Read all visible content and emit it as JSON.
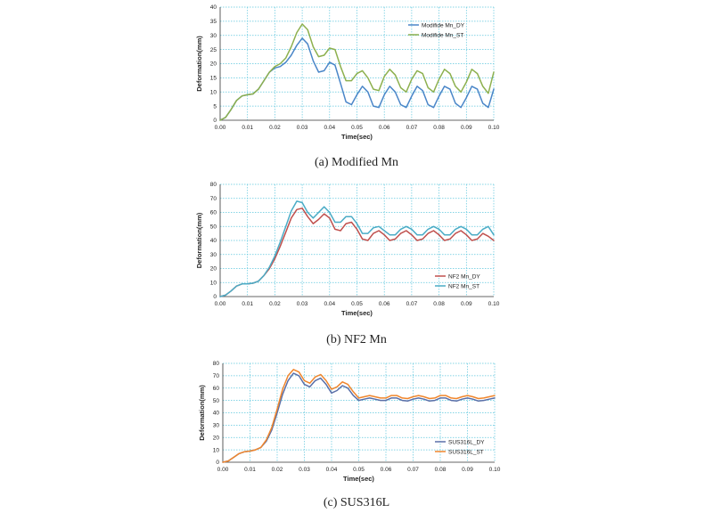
{
  "chart_data": [
    {
      "caption": "(a)  Modified  Mn",
      "type": "line",
      "xlabel": "Time(sec)",
      "ylabel": "Deformation(mm)",
      "xlim": [
        0,
        0.1
      ],
      "ylim": [
        0,
        40
      ],
      "xticks": [
        "0.00",
        "0.01",
        "0.02",
        "0.03",
        "0.04",
        "0.05",
        "0.06",
        "0.07",
        "0.08",
        "0.09",
        "0.10"
      ],
      "yticks": [
        "0",
        "5",
        "10",
        "15",
        "20",
        "25",
        "30",
        "35",
        "40"
      ],
      "grid": true,
      "legend_position": "top-right",
      "series": [
        {
          "name": "Modifide Mn_DY",
          "color": "#4a86c8",
          "x": [
            0,
            0.002,
            0.004,
            0.006,
            0.008,
            0.01,
            0.012,
            0.014,
            0.016,
            0.018,
            0.02,
            0.022,
            0.024,
            0.026,
            0.028,
            0.03,
            0.032,
            0.034,
            0.036,
            0.038,
            0.04,
            0.042,
            0.044,
            0.046,
            0.048,
            0.05,
            0.052,
            0.054,
            0.056,
            0.058,
            0.06,
            0.062,
            0.064,
            0.066,
            0.068,
            0.07,
            0.072,
            0.074,
            0.076,
            0.078,
            0.08,
            0.082,
            0.084,
            0.086,
            0.088,
            0.09,
            0.092,
            0.094,
            0.096,
            0.098,
            0.1
          ],
          "y": [
            0,
            1,
            3.8,
            7,
            8.6,
            9,
            9.3,
            11,
            14,
            17,
            18.5,
            19,
            20.5,
            23,
            26.5,
            29,
            27,
            21,
            17,
            17.5,
            20.5,
            19.5,
            13,
            6.5,
            5.5,
            9,
            12,
            10,
            5,
            4.5,
            9,
            12,
            10,
            5.5,
            4.5,
            8.5,
            12,
            10.5,
            5.5,
            4.5,
            8.5,
            12,
            11,
            6,
            4.5,
            8,
            12,
            11,
            6,
            4.5,
            11
          ]
        },
        {
          "name": "Modifide Mn_ST",
          "color": "#8db04e",
          "x": [
            0,
            0.002,
            0.004,
            0.006,
            0.008,
            0.01,
            0.012,
            0.014,
            0.016,
            0.018,
            0.02,
            0.022,
            0.024,
            0.026,
            0.028,
            0.03,
            0.032,
            0.034,
            0.036,
            0.038,
            0.04,
            0.042,
            0.044,
            0.046,
            0.048,
            0.05,
            0.052,
            0.054,
            0.056,
            0.058,
            0.06,
            0.062,
            0.064,
            0.066,
            0.068,
            0.07,
            0.072,
            0.074,
            0.076,
            0.078,
            0.08,
            0.082,
            0.084,
            0.086,
            0.088,
            0.09,
            0.092,
            0.094,
            0.096,
            0.098,
            0.1
          ],
          "y": [
            0,
            1,
            3.8,
            7,
            8.6,
            9,
            9.3,
            11,
            14,
            17,
            19,
            20,
            22,
            26,
            31,
            34,
            32,
            26,
            22.5,
            23,
            25.5,
            25,
            19,
            14,
            14,
            16.5,
            17.5,
            15,
            11,
            10.5,
            15.5,
            18,
            16,
            11.5,
            10,
            14.5,
            17.5,
            16.5,
            11.5,
            10,
            14.5,
            18,
            16.5,
            12,
            10,
            13.5,
            18,
            16.5,
            12,
            9.5,
            17
          ]
        }
      ]
    },
    {
      "caption": "(b)  NF2  Mn",
      "type": "line",
      "xlabel": "Time(sec)",
      "ylabel": "Deformation(mm)",
      "xlim": [
        0,
        0.1
      ],
      "ylim": [
        0,
        80
      ],
      "xticks": [
        "0.00",
        "0.01",
        "0.02",
        "0.03",
        "0.04",
        "0.05",
        "0.06",
        "0.07",
        "0.08",
        "0.09",
        "0.10"
      ],
      "yticks": [
        "0",
        "10",
        "20",
        "30",
        "40",
        "50",
        "60",
        "70",
        "80"
      ],
      "grid": true,
      "legend_position": "bottom-right",
      "series": [
        {
          "name": "NF2 Mn_DY",
          "color": "#c0504d",
          "x": [
            0,
            0.002,
            0.004,
            0.006,
            0.008,
            0.01,
            0.012,
            0.014,
            0.016,
            0.018,
            0.02,
            0.022,
            0.024,
            0.026,
            0.028,
            0.03,
            0.032,
            0.034,
            0.036,
            0.038,
            0.04,
            0.042,
            0.044,
            0.046,
            0.048,
            0.05,
            0.052,
            0.054,
            0.056,
            0.058,
            0.06,
            0.062,
            0.064,
            0.066,
            0.068,
            0.07,
            0.072,
            0.074,
            0.076,
            0.078,
            0.08,
            0.082,
            0.084,
            0.086,
            0.088,
            0.09,
            0.092,
            0.094,
            0.096,
            0.098,
            0.1
          ],
          "y": [
            0,
            1,
            4,
            7.5,
            9,
            9,
            9.5,
            11,
            15,
            20,
            27,
            36,
            46,
            56,
            62,
            63,
            57,
            52,
            55,
            59,
            56,
            48,
            47,
            52,
            53,
            48,
            41,
            40,
            45,
            47,
            44,
            40,
            41,
            45,
            47,
            44,
            40,
            41,
            45,
            47,
            44,
            40,
            41,
            45,
            47,
            44,
            40,
            41,
            45,
            43,
            40
          ]
        },
        {
          "name": "NF2 Mn_ST",
          "color": "#4bacc6",
          "x": [
            0,
            0.002,
            0.004,
            0.006,
            0.008,
            0.01,
            0.012,
            0.014,
            0.016,
            0.018,
            0.02,
            0.022,
            0.024,
            0.026,
            0.028,
            0.03,
            0.032,
            0.034,
            0.036,
            0.038,
            0.04,
            0.042,
            0.044,
            0.046,
            0.048,
            0.05,
            0.052,
            0.054,
            0.056,
            0.058,
            0.06,
            0.062,
            0.064,
            0.066,
            0.068,
            0.07,
            0.072,
            0.074,
            0.076,
            0.078,
            0.08,
            0.082,
            0.084,
            0.086,
            0.088,
            0.09,
            0.092,
            0.094,
            0.096,
            0.098,
            0.1
          ],
          "y": [
            0,
            1,
            4,
            7.5,
            9,
            9,
            9.5,
            11,
            15,
            21,
            29,
            39,
            50,
            61,
            68,
            67,
            60,
            56,
            60,
            64,
            60,
            53,
            53,
            57,
            57,
            52,
            45,
            45,
            49,
            50,
            47,
            44,
            44,
            48,
            50,
            48,
            44,
            44,
            48,
            50,
            48,
            44,
            44,
            48,
            50,
            48,
            44,
            44,
            48,
            50,
            44
          ]
        }
      ]
    },
    {
      "caption": "(c)  SUS316L",
      "type": "line",
      "xlabel": "Time(sec)",
      "ylabel": "Deformation(mm)",
      "xlim": [
        0,
        0.1
      ],
      "ylim": [
        0,
        80
      ],
      "xticks": [
        "0.00",
        "0.01",
        "0.02",
        "0.03",
        "0.04",
        "0.05",
        "0.06",
        "0.07",
        "0.08",
        "0.09",
        "0.10"
      ],
      "yticks": [
        "0",
        "10",
        "20",
        "30",
        "40",
        "50",
        "60",
        "70",
        "80"
      ],
      "grid": true,
      "legend_position": "bottom-right",
      "series": [
        {
          "name": "SUS316L_DY",
          "color": "#5a6fa8",
          "x": [
            0,
            0.002,
            0.004,
            0.006,
            0.008,
            0.01,
            0.012,
            0.014,
            0.016,
            0.018,
            0.02,
            0.022,
            0.024,
            0.026,
            0.028,
            0.03,
            0.032,
            0.034,
            0.036,
            0.038,
            0.04,
            0.042,
            0.044,
            0.046,
            0.048,
            0.05,
            0.052,
            0.054,
            0.056,
            0.058,
            0.06,
            0.062,
            0.064,
            0.066,
            0.068,
            0.07,
            0.072,
            0.074,
            0.076,
            0.078,
            0.08,
            0.082,
            0.084,
            0.086,
            0.088,
            0.09,
            0.092,
            0.094,
            0.096,
            0.098,
            0.1
          ],
          "y": [
            0,
            1,
            4,
            7,
            8.5,
            9,
            10,
            12,
            17,
            26,
            40,
            55,
            66,
            72,
            70,
            63,
            61,
            66,
            68,
            63,
            56,
            58,
            62,
            60,
            54,
            50,
            51,
            52,
            51,
            50,
            50,
            52,
            52,
            50,
            49.5,
            51,
            52,
            51,
            49.5,
            50,
            52,
            52,
            50,
            49.5,
            51,
            52,
            51,
            49.5,
            50,
            51,
            52
          ]
        },
        {
          "name": "SUS316L_ST",
          "color": "#f0862d",
          "x": [
            0,
            0.002,
            0.004,
            0.006,
            0.008,
            0.01,
            0.012,
            0.014,
            0.016,
            0.018,
            0.02,
            0.022,
            0.024,
            0.026,
            0.028,
            0.03,
            0.032,
            0.034,
            0.036,
            0.038,
            0.04,
            0.042,
            0.044,
            0.046,
            0.048,
            0.05,
            0.052,
            0.054,
            0.056,
            0.058,
            0.06,
            0.062,
            0.064,
            0.066,
            0.068,
            0.07,
            0.072,
            0.074,
            0.076,
            0.078,
            0.08,
            0.082,
            0.084,
            0.086,
            0.088,
            0.09,
            0.092,
            0.094,
            0.096,
            0.098,
            0.1
          ],
          "y": [
            0,
            1,
            4,
            7,
            8.5,
            9,
            10,
            12,
            18,
            28,
            43,
            59,
            70,
            75,
            73,
            66,
            64,
            69,
            71,
            66,
            59,
            61,
            65,
            63,
            57,
            52,
            53,
            54,
            53,
            52,
            52,
            54,
            54,
            52,
            51.5,
            53,
            54,
            53,
            51.5,
            52,
            54,
            54,
            52,
            51.5,
            53,
            54,
            53,
            51.5,
            52,
            53,
            54
          ]
        }
      ]
    }
  ]
}
